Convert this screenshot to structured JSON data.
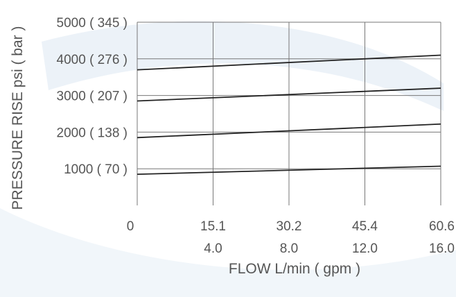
{
  "chart_data": {
    "type": "line",
    "xlabel": "FLOW L/min ( gpm )",
    "ylabel": "PRESSURE RISE psi ( bar )",
    "x_ticks_lpm": [
      "0",
      "15.1",
      "30.2",
      "45.4",
      "60.6"
    ],
    "x_ticks_gpm": [
      "4.0",
      "8.0",
      "12.0",
      "16.0"
    ],
    "y_ticks": [
      "1000 ( 70 )",
      "2000 ( 138 )",
      "3000 ( 207 )",
      "4000 ( 276 )",
      "5000 ( 345 )"
    ],
    "xlim": [
      0,
      60.6
    ],
    "ylim": [
      0,
      5000
    ],
    "grid": true,
    "x": [
      0,
      60.6
    ],
    "series": [
      {
        "values": [
          850,
          1070
        ]
      },
      {
        "values": [
          1850,
          2220
        ]
      },
      {
        "values": [
          2850,
          3200
        ]
      },
      {
        "values": [
          3700,
          4100
        ]
      }
    ]
  },
  "colors": {
    "line": "#222222",
    "grid": "#777777",
    "text": "#555555",
    "watermark": "#dce8f2"
  }
}
